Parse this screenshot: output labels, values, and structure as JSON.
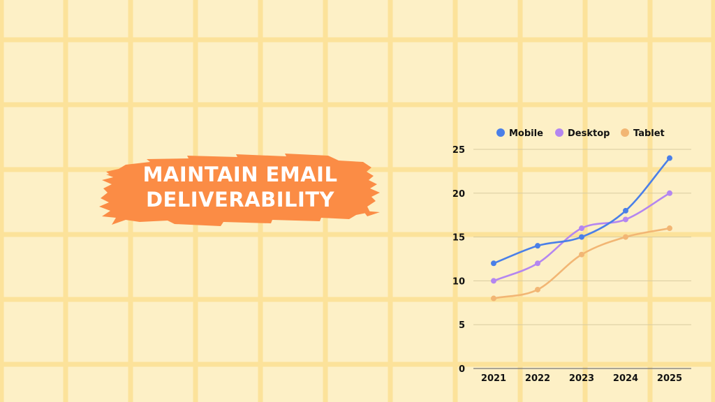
{
  "title": {
    "line1": "MAINTAIN EMAIL",
    "line2": "DELIVERABILITY"
  },
  "colors": {
    "background": "#FDF0C6",
    "grid_lines": "#FCE29A",
    "brush": "#FB8C45",
    "mobile": "#4A7FE8",
    "desktop": "#B486F0",
    "tablet": "#F2B674"
  },
  "chart_data": {
    "type": "line",
    "title": "",
    "xlabel": "",
    "ylabel": "",
    "categories": [
      "2021",
      "2022",
      "2023",
      "2024",
      "2025"
    ],
    "ylim": [
      0,
      25
    ],
    "yticks": [
      0,
      5,
      10,
      15,
      20,
      25
    ],
    "grid": true,
    "legend_position": "top",
    "series": [
      {
        "name": "Mobile",
        "color": "#4A7FE8",
        "values": [
          12,
          14,
          15,
          18,
          24
        ]
      },
      {
        "name": "Desktop",
        "color": "#B486F0",
        "values": [
          10,
          12,
          16,
          17,
          20
        ]
      },
      {
        "name": "Tablet",
        "color": "#F2B674",
        "values": [
          8,
          9,
          13,
          15,
          16
        ]
      }
    ]
  }
}
